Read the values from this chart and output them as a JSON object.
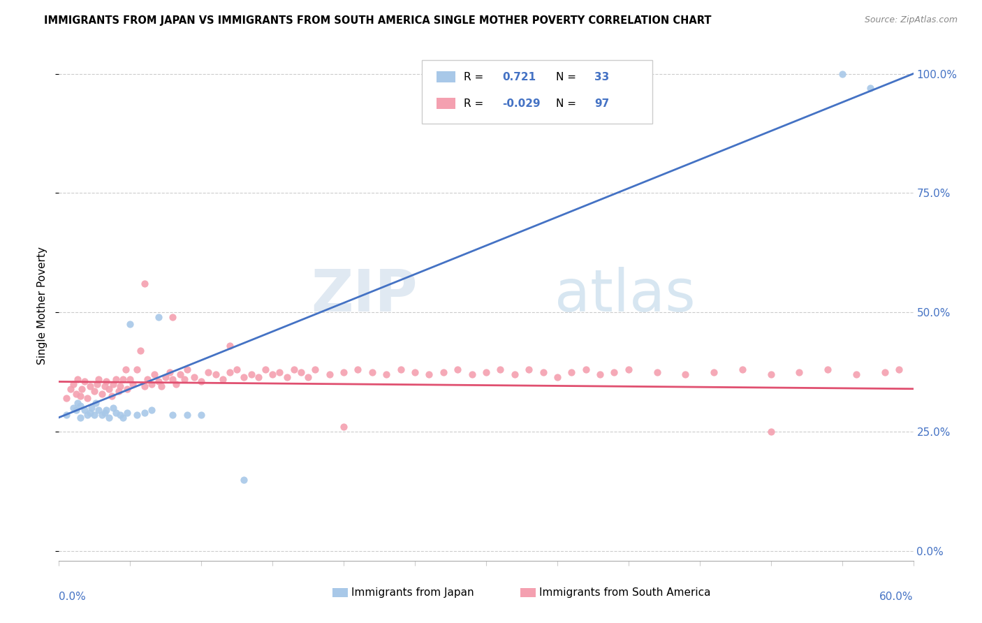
{
  "title": "IMMIGRANTS FROM JAPAN VS IMMIGRANTS FROM SOUTH AMERICA SINGLE MOTHER POVERTY CORRELATION CHART",
  "source": "Source: ZipAtlas.com",
  "ylabel": "Single Mother Poverty",
  "color_japan": "#a8c8e8",
  "color_sa": "#f4a0b0",
  "color_japan_line": "#4472c4",
  "color_sa_line": "#e05070",
  "japan_x": [
    0.005,
    0.01,
    0.012,
    0.013,
    0.015,
    0.015,
    0.018,
    0.02,
    0.022,
    0.023,
    0.025,
    0.026,
    0.028,
    0.03,
    0.032,
    0.033,
    0.035,
    0.038,
    0.04,
    0.043,
    0.045,
    0.048,
    0.05,
    0.055,
    0.06,
    0.065,
    0.07,
    0.08,
    0.09,
    0.1,
    0.13,
    0.55,
    0.57
  ],
  "japan_y": [
    0.285,
    0.3,
    0.295,
    0.31,
    0.305,
    0.28,
    0.295,
    0.285,
    0.29,
    0.3,
    0.285,
    0.31,
    0.295,
    0.285,
    0.29,
    0.295,
    0.28,
    0.3,
    0.29,
    0.285,
    0.28,
    0.29,
    0.475,
    0.285,
    0.29,
    0.295,
    0.49,
    0.285,
    0.285,
    0.285,
    0.15,
    1.0,
    0.97
  ],
  "sa_x": [
    0.005,
    0.008,
    0.01,
    0.012,
    0.013,
    0.015,
    0.016,
    0.018,
    0.02,
    0.022,
    0.025,
    0.027,
    0.028,
    0.03,
    0.032,
    0.033,
    0.035,
    0.037,
    0.038,
    0.04,
    0.042,
    0.043,
    0.045,
    0.047,
    0.048,
    0.05,
    0.052,
    0.055,
    0.057,
    0.06,
    0.062,
    0.065,
    0.067,
    0.07,
    0.072,
    0.075,
    0.078,
    0.08,
    0.082,
    0.085,
    0.088,
    0.09,
    0.095,
    0.1,
    0.105,
    0.11,
    0.115,
    0.12,
    0.125,
    0.13,
    0.135,
    0.14,
    0.145,
    0.15,
    0.155,
    0.16,
    0.165,
    0.17,
    0.175,
    0.18,
    0.19,
    0.2,
    0.21,
    0.22,
    0.23,
    0.24,
    0.25,
    0.26,
    0.27,
    0.28,
    0.29,
    0.3,
    0.31,
    0.32,
    0.33,
    0.34,
    0.35,
    0.36,
    0.37,
    0.38,
    0.39,
    0.4,
    0.42,
    0.44,
    0.46,
    0.48,
    0.5,
    0.52,
    0.54,
    0.56,
    0.58,
    0.59,
    0.06,
    0.08,
    0.12,
    0.2,
    0.5
  ],
  "sa_y": [
    0.32,
    0.34,
    0.35,
    0.33,
    0.36,
    0.325,
    0.34,
    0.355,
    0.32,
    0.345,
    0.335,
    0.35,
    0.36,
    0.33,
    0.345,
    0.355,
    0.34,
    0.325,
    0.35,
    0.36,
    0.335,
    0.345,
    0.36,
    0.38,
    0.34,
    0.36,
    0.35,
    0.38,
    0.42,
    0.345,
    0.36,
    0.35,
    0.37,
    0.355,
    0.345,
    0.365,
    0.375,
    0.36,
    0.35,
    0.37,
    0.36,
    0.38,
    0.365,
    0.355,
    0.375,
    0.37,
    0.36,
    0.375,
    0.38,
    0.365,
    0.37,
    0.365,
    0.38,
    0.37,
    0.375,
    0.365,
    0.38,
    0.375,
    0.365,
    0.38,
    0.37,
    0.375,
    0.38,
    0.375,
    0.37,
    0.38,
    0.375,
    0.37,
    0.375,
    0.38,
    0.37,
    0.375,
    0.38,
    0.37,
    0.38,
    0.375,
    0.365,
    0.375,
    0.38,
    0.37,
    0.375,
    0.38,
    0.375,
    0.37,
    0.375,
    0.38,
    0.37,
    0.375,
    0.38,
    0.37,
    0.375,
    0.38,
    0.56,
    0.49,
    0.43,
    0.26,
    0.25
  ],
  "xlim": [
    0.0,
    0.6
  ],
  "ylim": [
    -0.02,
    1.05
  ],
  "yticks": [
    0.0,
    0.25,
    0.5,
    0.75,
    1.0
  ],
  "ytick_labels": [
    "0.0%",
    "25.0%",
    "50.0%",
    "75.0%",
    "100.0%"
  ],
  "japan_line_x0": 0.0,
  "japan_line_y0": 0.28,
  "japan_line_x1": 0.6,
  "japan_line_y1": 1.0,
  "sa_line_x0": 0.0,
  "sa_line_y0": 0.355,
  "sa_line_x1": 0.6,
  "sa_line_y1": 0.34
}
